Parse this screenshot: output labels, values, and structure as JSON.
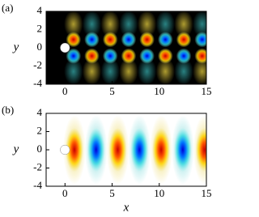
{
  "chart_data": [
    {
      "type": "contour",
      "panel_label": "(a)",
      "ylabel": "y",
      "background": "#000000",
      "xlim": [
        -2,
        15
      ],
      "ylim": [
        -4,
        4
      ],
      "xticks": [
        0,
        5,
        10,
        15
      ],
      "yticks": [
        -4,
        -2,
        0,
        2,
        4
      ]
    },
    {
      "type": "contour",
      "panel_label": "(b)",
      "xlabel": "x",
      "ylabel": "y",
      "background": "#ffffff",
      "xlim": [
        -2,
        15
      ],
      "ylim": [
        -4,
        4
      ],
      "xticks": [
        0,
        5,
        10,
        15
      ],
      "yticks": [
        -4,
        -2,
        0,
        2,
        4
      ]
    }
  ]
}
